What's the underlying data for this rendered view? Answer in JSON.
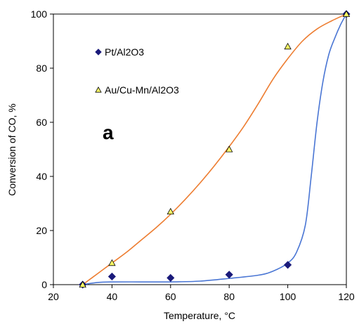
{
  "chart_data": {
    "type": "scatter",
    "xlabel": "Temperature, °C",
    "ylabel": "Conversion of CO, %",
    "xlim": [
      20,
      120
    ],
    "ylim": [
      0,
      100
    ],
    "xticks": [
      20,
      40,
      60,
      80,
      100,
      120
    ],
    "yticks": [
      0,
      20,
      40,
      60,
      80,
      100
    ],
    "grid": false,
    "legend_position": "top-left",
    "annotations": [
      "a"
    ],
    "series": [
      {
        "name": "Pt/Al2O3",
        "marker": "diamond",
        "marker_color": "#1a1a7a",
        "line_color": "#4a76d4",
        "x": [
          30,
          40,
          60,
          80,
          100,
          120
        ],
        "y": [
          0,
          3,
          2.5,
          3.7,
          7.3,
          100
        ],
        "fit_curve": [
          [
            30,
            0
          ],
          [
            35,
            0.8
          ],
          [
            40,
            1
          ],
          [
            50,
            1
          ],
          [
            60,
            1
          ],
          [
            70,
            1.3
          ],
          [
            80,
            2.3
          ],
          [
            90,
            3.5
          ],
          [
            95,
            5
          ],
          [
            100,
            8
          ],
          [
            103,
            12
          ],
          [
            106,
            22
          ],
          [
            108,
            40
          ],
          [
            110,
            60
          ],
          [
            112,
            75
          ],
          [
            114,
            85
          ],
          [
            116,
            91
          ],
          [
            118,
            96
          ],
          [
            120,
            100
          ]
        ]
      },
      {
        "name": "Au/Cu-Mn/Al2O3",
        "marker": "triangle",
        "marker_color": "#ffff66",
        "line_color": "#ed7d31",
        "x": [
          30,
          40,
          60,
          80,
          100,
          120
        ],
        "y": [
          0,
          8,
          27,
          50,
          88,
          100
        ],
        "fit_curve": [
          [
            30,
            0
          ],
          [
            35,
            4
          ],
          [
            40,
            8
          ],
          [
            45,
            12
          ],
          [
            50,
            16.5
          ],
          [
            55,
            21
          ],
          [
            60,
            26
          ],
          [
            65,
            31.5
          ],
          [
            70,
            37.5
          ],
          [
            75,
            44
          ],
          [
            80,
            51
          ],
          [
            85,
            58.5
          ],
          [
            90,
            67
          ],
          [
            95,
            76
          ],
          [
            100,
            83.5
          ],
          [
            105,
            90
          ],
          [
            110,
            94.5
          ],
          [
            115,
            97.5
          ],
          [
            120,
            100
          ]
        ]
      }
    ]
  }
}
